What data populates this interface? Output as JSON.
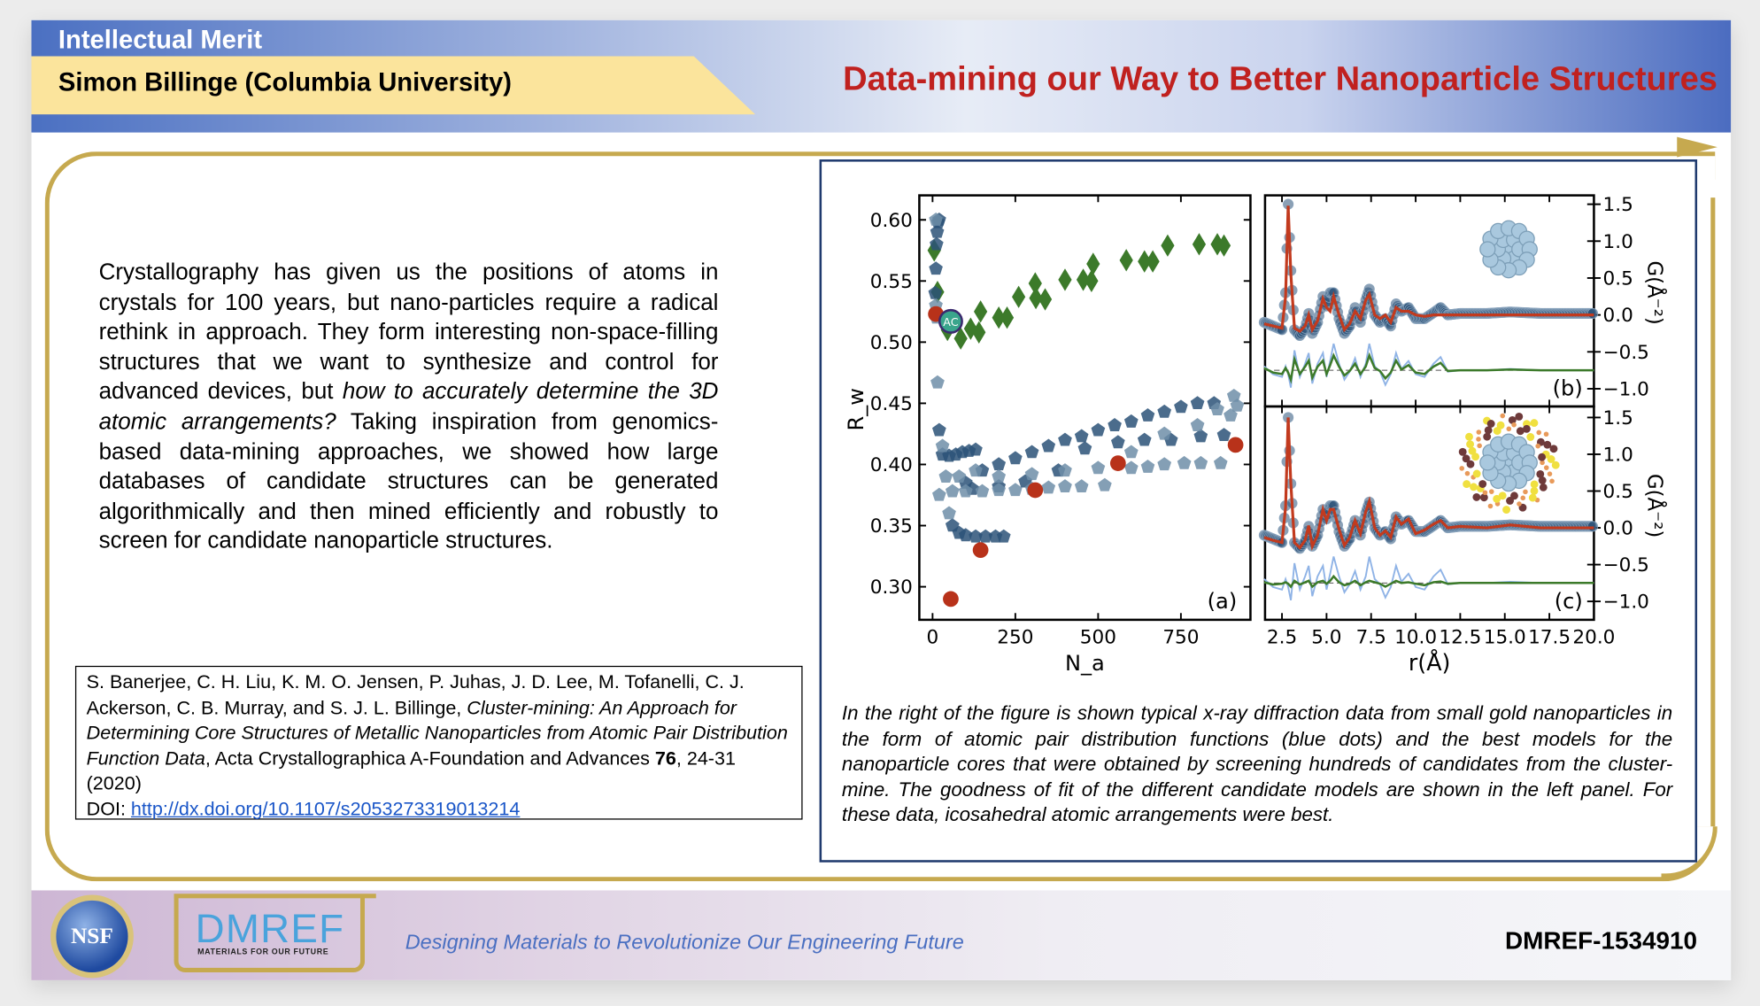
{
  "header": {
    "section": "Intellectual Merit",
    "presenter": "Simon Billinge (Columbia University)",
    "title": "Data-mining our Way to Better Nanoparticle Structures"
  },
  "body": {
    "p1": "Crystallography has given us the positions of atoms in crystals for 100 years, but nano-particles require a radical rethink in approach. They form interesting non-space-filling structures that we want to synthesize and control for advanced devices, but ",
    "p_italic": "how to accurately determine the 3D atomic arrangements?",
    "p2": " Taking inspiration from genomics-based data-mining approaches, we showed how large databases of candidate structures can be generated algorithmically and then mined efficiently and robustly to screen for candidate nanoparticle structures."
  },
  "citation": {
    "authors": "S. Banerjee, C. H. Liu, K. M. O. Jensen, P. Juhas, J. D. Lee, M. Tofanelli, C. J. Ackerson, C. B. Murray, and S. J. L. Billinge, ",
    "title": "Cluster-mining: An Approach for Determining Core Structures of Metallic Nanoparticles from Atomic Pair Distribution Function Data",
    "journal": ", Acta Crystallographica A-Foundation and Advances ",
    "volume": "76",
    "pages": ", 24-31 (2020)",
    "doi_label": "DOI: ",
    "doi_link": "http://dx.doi.org/10.1107/s2053273319013214"
  },
  "caption": "In the right of the figure is shown typical x-ray diffraction data from small gold nanoparticles in the form of atomic pair distribution functions (blue dots) and the best models for the nanoparticle cores that were obtained by screening hundreds of candidates from the cluster-mine. The goodness of fit of the different candidate models are shown in the left panel. For these data, icosahedral atomic arrangements were best.",
  "footer": {
    "logo_nsf": "NSF",
    "logo_dmref": "DMREF",
    "logo_dmref_sub": "MATERIALS FOR OUR FUTURE",
    "tagline": "Designing Materials to Revolutionize Our Engineering Future",
    "award": "DMREF-1534910"
  },
  "colors": {
    "accent_red": "#c0211f",
    "gold": "#c6a94f",
    "blue_points": "#2b5278",
    "light_points": "#6f8ea8",
    "green": "#3c7a2a",
    "fit": "#c23a1e"
  },
  "chart_data": [
    {
      "type": "scatter",
      "panel_label": "(a)",
      "xlabel": "N_a",
      "ylabel": "R_w",
      "xlim": [
        -40,
        960
      ],
      "ylim": [
        0.273,
        0.62
      ],
      "xticks": [
        0,
        250,
        500,
        750
      ],
      "yticks": [
        0.3,
        0.35,
        0.4,
        0.45,
        0.5,
        0.55,
        0.6
      ],
      "annotation": "AC",
      "annotation_point": [
        55,
        0.517
      ],
      "series": [
        {
          "name": "green-diamonds",
          "marker": "diamond",
          "color": "#3c7a2a",
          "points": [
            [
              5,
              0.575
            ],
            [
              15,
              0.541
            ],
            [
              45,
              0.51
            ],
            [
              85,
              0.503
            ],
            [
              115,
              0.511
            ],
            [
              140,
              0.508
            ],
            [
              145,
              0.525
            ],
            [
              200,
              0.52
            ],
            [
              225,
              0.52
            ],
            [
              260,
              0.537
            ],
            [
              310,
              0.548
            ],
            [
              312,
              0.536
            ],
            [
              340,
              0.535
            ],
            [
              400,
              0.551
            ],
            [
              455,
              0.551
            ],
            [
              480,
              0.55
            ],
            [
              485,
              0.564
            ],
            [
              585,
              0.567
            ],
            [
              640,
              0.566
            ],
            [
              665,
              0.566
            ],
            [
              710,
              0.579
            ],
            [
              805,
              0.58
            ],
            [
              860,
              0.58
            ],
            [
              880,
              0.579
            ]
          ]
        },
        {
          "name": "blue-dark",
          "marker": "pentagon",
          "color": "#2b5278",
          "points": [
            [
              8,
              0.54
            ],
            [
              10,
              0.56
            ],
            [
              12,
              0.58
            ],
            [
              14,
              0.59
            ],
            [
              17,
              0.598
            ],
            [
              20,
              0.6
            ],
            [
              20,
              0.428
            ],
            [
              30,
              0.408
            ],
            [
              50,
              0.407
            ],
            [
              70,
              0.408
            ],
            [
              90,
              0.41
            ],
            [
              110,
              0.411
            ],
            [
              130,
              0.412
            ],
            [
              60,
              0.35
            ],
            [
              80,
              0.344
            ],
            [
              100,
              0.342
            ],
            [
              130,
              0.341
            ],
            [
              160,
              0.341
            ],
            [
              190,
              0.341
            ],
            [
              215,
              0.341
            ],
            [
              100,
              0.385
            ],
            [
              150,
              0.395
            ],
            [
              200,
              0.4
            ],
            [
              250,
              0.405
            ],
            [
              300,
              0.41
            ],
            [
              350,
              0.415
            ],
            [
              400,
              0.42
            ],
            [
              450,
              0.423
            ],
            [
              500,
              0.428
            ],
            [
              550,
              0.432
            ],
            [
              600,
              0.435
            ],
            [
              650,
              0.44
            ],
            [
              700,
              0.443
            ],
            [
              750,
              0.447
            ],
            [
              800,
              0.45
            ],
            [
              850,
              0.45
            ],
            [
              120,
              0.38
            ],
            [
              200,
              0.382
            ],
            [
              280,
              0.386
            ],
            [
              380,
              0.395
            ],
            [
              460,
              0.413
            ],
            [
              560,
              0.418
            ],
            [
              640,
              0.42
            ],
            [
              720,
              0.42
            ],
            [
              810,
              0.423
            ],
            [
              880,
              0.424
            ]
          ]
        },
        {
          "name": "blue-light",
          "marker": "pentagon",
          "color": "#6f8ea8",
          "points": [
            [
              10,
              0.6
            ],
            [
              10,
              0.53
            ],
            [
              12,
              0.52
            ],
            [
              15,
              0.467
            ],
            [
              30,
              0.415
            ],
            [
              50,
              0.36
            ],
            [
              20,
              0.375
            ],
            [
              60,
              0.378
            ],
            [
              100,
              0.378
            ],
            [
              150,
              0.378
            ],
            [
              200,
              0.379
            ],
            [
              250,
              0.379
            ],
            [
              300,
              0.38
            ],
            [
              350,
              0.381
            ],
            [
              400,
              0.382
            ],
            [
              450,
              0.382
            ],
            [
              520,
              0.383
            ],
            [
              40,
              0.39
            ],
            [
              80,
              0.39
            ],
            [
              130,
              0.395
            ],
            [
              200,
              0.39
            ],
            [
              300,
              0.392
            ],
            [
              400,
              0.395
            ],
            [
              500,
              0.397
            ],
            [
              600,
              0.397
            ],
            [
              650,
              0.398
            ],
            [
              700,
              0.4
            ],
            [
              760,
              0.401
            ],
            [
              810,
              0.401
            ],
            [
              870,
              0.401
            ],
            [
              600,
              0.41
            ],
            [
              700,
              0.425
            ],
            [
              800,
              0.432
            ],
            [
              900,
              0.44
            ],
            [
              910,
              0.456
            ],
            [
              920,
              0.448
            ],
            [
              860,
              0.445
            ]
          ]
        },
        {
          "name": "red-best",
          "marker": "circle",
          "color": "#b8321a",
          "points": [
            [
              10,
              0.523
            ],
            [
              55,
              0.29
            ],
            [
              145,
              0.33
            ],
            [
              310,
              0.379
            ],
            [
              560,
              0.401
            ],
            [
              915,
              0.416
            ]
          ]
        }
      ]
    },
    {
      "type": "line",
      "panel_label": "(b)",
      "xlabel": "r(Å)",
      "ylabel": "G(Å⁻²)",
      "xlim": [
        1.55,
        20
      ],
      "ylim": [
        -1.24,
        1.62
      ],
      "xticks": [
        "2.5",
        "5.0",
        "7.5",
        "10.0",
        "12.5",
        "15.0",
        "17.5",
        "20.0"
      ],
      "yticks": [
        "1.5",
        "1.0",
        "0.5",
        "0.0",
        "−0.5",
        "−1.0"
      ],
      "data_r": [
        1.5,
        2.0,
        2.5,
        2.7,
        2.85,
        3.0,
        3.2,
        3.5,
        3.8,
        4.0,
        4.2,
        4.5,
        4.8,
        5.0,
        5.2,
        5.4,
        5.7,
        6.0,
        6.3,
        6.6,
        6.9,
        7.2,
        7.4,
        7.7,
        8.0,
        8.3,
        8.6,
        8.9,
        9.2,
        9.6,
        10.0,
        10.5,
        11.0,
        11.4,
        11.8,
        12.5,
        14,
        15.3,
        17,
        20
      ],
      "data_g": [
        -0.1,
        -0.15,
        -0.2,
        0.3,
        1.5,
        0.6,
        -0.2,
        -0.28,
        -0.18,
        0.02,
        -0.25,
        -0.1,
        0.25,
        0.12,
        0.3,
        0.3,
        -0.05,
        -0.25,
        -0.15,
        0.1,
        -0.1,
        0.2,
        0.35,
        0.0,
        -0.1,
        -0.05,
        -0.15,
        0.15,
        0.05,
        0.1,
        -0.05,
        -0.05,
        0.03,
        0.1,
        0.0,
        0.02,
        0.02,
        0.04,
        0.02,
        0.02
      ],
      "fit_g": [
        -0.12,
        -0.15,
        -0.18,
        0.25,
        1.48,
        0.55,
        -0.18,
        -0.22,
        -0.15,
        0.0,
        -0.2,
        -0.08,
        0.22,
        0.1,
        0.05,
        0.25,
        0.0,
        -0.2,
        -0.12,
        0.05,
        -0.05,
        0.2,
        0.28,
        0.0,
        -0.05,
        0.0,
        -0.1,
        0.1,
        0.05,
        0.05,
        0.0,
        -0.02,
        0.0,
        0.0,
        0.0,
        0.0,
        0.0,
        0.0,
        0.0,
        0.0
      ],
      "diff_offset": -0.75,
      "diff_g": [
        -0.72,
        -0.78,
        -0.8,
        -0.72,
        -0.78,
        -0.88,
        -0.6,
        -0.8,
        -0.7,
        -0.62,
        -0.85,
        -0.7,
        -0.62,
        -0.8,
        -0.68,
        -0.55,
        -0.7,
        -0.82,
        -0.76,
        -0.66,
        -0.8,
        -0.7,
        -0.55,
        -0.72,
        -0.76,
        -0.86,
        -0.78,
        -0.62,
        -0.74,
        -0.68,
        -0.78,
        -0.8,
        -0.7,
        -0.65,
        -0.76,
        -0.75,
        -0.75,
        -0.74,
        -0.75,
        -0.75
      ],
      "inset": "Au core cluster"
    },
    {
      "type": "line",
      "panel_label": "(c)",
      "xlabel": "r(Å)",
      "ylabel": "G(Å⁻²)",
      "xlim": [
        1.55,
        20
      ],
      "ylim": [
        -1.25,
        1.65
      ],
      "xticks": [
        "2.5",
        "5.0",
        "7.5",
        "10.0",
        "12.5",
        "15.0",
        "17.5",
        "20.0"
      ],
      "yticks": [
        "1.5",
        "1.0",
        "0.5",
        "0.0",
        "−0.5",
        "−1.0"
      ],
      "fit_g": [
        -0.13,
        -0.17,
        -0.2,
        0.28,
        1.5,
        0.6,
        -0.2,
        -0.27,
        -0.17,
        0.03,
        -0.25,
        -0.1,
        0.25,
        0.1,
        0.25,
        0.25,
        -0.02,
        -0.24,
        -0.13,
        0.1,
        -0.08,
        0.22,
        0.36,
        0.0,
        -0.1,
        -0.04,
        -0.13,
        0.15,
        0.05,
        0.12,
        -0.08,
        -0.03,
        0.05,
        0.1,
        0.0,
        0.02,
        0.0,
        0.04,
        0.0,
        0.0
      ],
      "diff_g": [
        -0.74,
        -0.77,
        -0.76,
        -0.74,
        -0.76,
        -0.8,
        -0.72,
        -0.77,
        -0.74,
        -0.72,
        -0.8,
        -0.74,
        -0.72,
        -0.76,
        -0.72,
        -0.66,
        -0.74,
        -0.78,
        -0.76,
        -0.72,
        -0.78,
        -0.74,
        -0.72,
        -0.74,
        -0.76,
        -0.8,
        -0.76,
        -0.72,
        -0.75,
        -0.74,
        -0.76,
        -0.78,
        -0.74,
        -0.73,
        -0.76,
        -0.75,
        -0.75,
        -0.75,
        -0.75,
        -0.75
      ],
      "inset": "Au core with ligand shell"
    }
  ]
}
